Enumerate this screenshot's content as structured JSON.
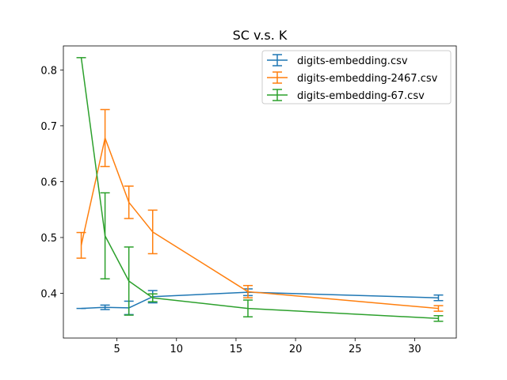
{
  "chart_data": {
    "type": "line",
    "title": "SC v.s. K",
    "xlabel": "",
    "ylabel": "",
    "xlim": [
      0.5,
      33.5
    ],
    "ylim": [
      0.32,
      0.843
    ],
    "xticks": [
      5,
      10,
      15,
      20,
      25,
      30
    ],
    "yticks": [
      0.4,
      0.5,
      0.6,
      0.7,
      0.8
    ],
    "xtick_labels": [
      "5",
      "10",
      "15",
      "20",
      "25",
      "30"
    ],
    "ytick_labels": [
      "0.4",
      "0.5",
      "0.6",
      "0.7",
      "0.8"
    ],
    "grid": false,
    "legend_position": "upper right",
    "series": [
      {
        "name": "digits-embedding.csv",
        "color": "#1f77b4",
        "x": [
          2,
          4,
          6,
          8,
          16,
          32
        ],
        "y": [
          0.373,
          0.375,
          0.374,
          0.394,
          0.402,
          0.392
        ],
        "err": [
          0.0,
          0.004,
          0.012,
          0.011,
          0.006,
          0.005
        ]
      },
      {
        "name": "digits-embedding-2467.csv",
        "color": "#ff7f0e",
        "x": [
          2,
          4,
          6,
          8,
          16,
          32
        ],
        "y": [
          0.486,
          0.678,
          0.563,
          0.51,
          0.403,
          0.373
        ],
        "err": [
          0.023,
          0.051,
          0.029,
          0.039,
          0.011,
          0.005
        ]
      },
      {
        "name": "digits-embedding-67.csv",
        "color": "#2ca02c",
        "x": [
          2,
          4,
          6,
          8,
          16,
          32
        ],
        "y": [
          0.822,
          0.503,
          0.422,
          0.392,
          0.373,
          0.355
        ],
        "err": [
          0.0,
          0.077,
          0.061,
          0.007,
          0.015,
          0.005
        ]
      }
    ]
  }
}
